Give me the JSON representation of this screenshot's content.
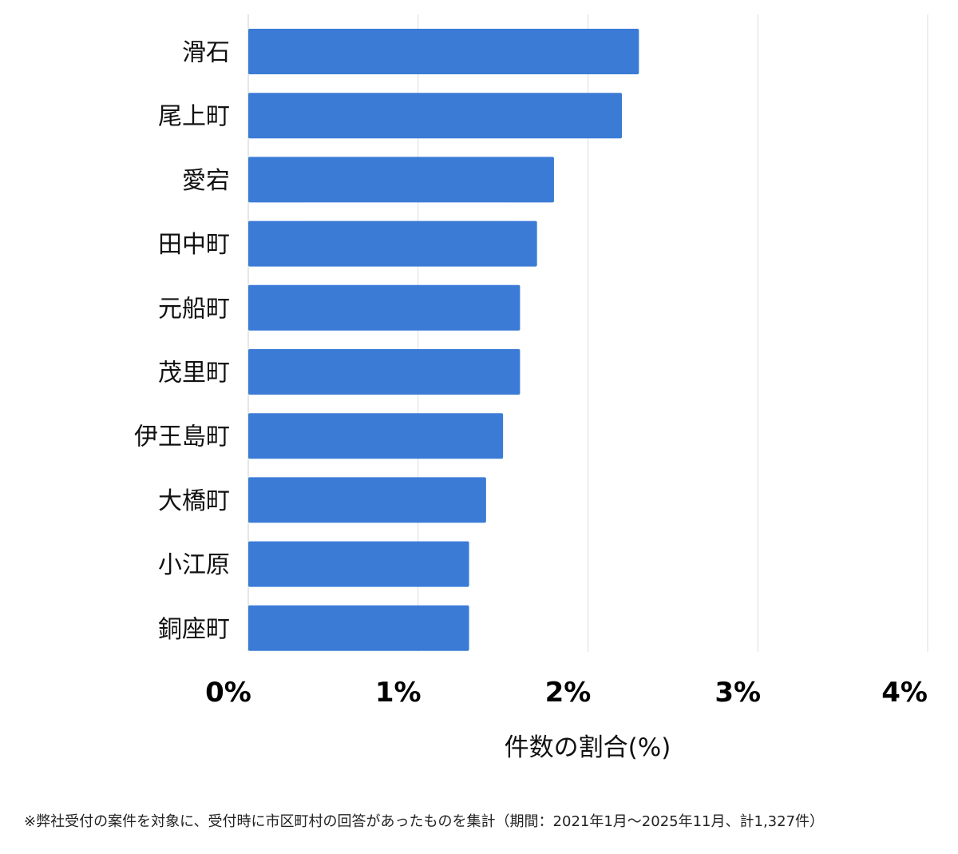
{
  "chart_data": {
    "type": "bar",
    "orientation": "horizontal",
    "categories": [
      "滑石",
      "尾上町",
      "愛宕",
      "田中町",
      "元船町",
      "茂里町",
      "伊王島町",
      "大橋町",
      "小江原",
      "銅座町"
    ],
    "values": [
      2.3,
      2.2,
      1.8,
      1.7,
      1.6,
      1.6,
      1.5,
      1.4,
      1.3,
      1.3
    ],
    "xlabel": "件数の割合(%)",
    "ylabel": "",
    "xlim": [
      0,
      4
    ],
    "x_ticks": [
      "0%",
      "1%",
      "2%",
      "3%",
      "4%"
    ],
    "grid": true,
    "bar_color": "#3b7bd6",
    "grid_color": "#dddddd"
  },
  "footnote": "※弊社受付の案件を対象に、受付時に市区町村の回答があったものを集計（期間：2021年1月～2025年11月、計1,327件）"
}
